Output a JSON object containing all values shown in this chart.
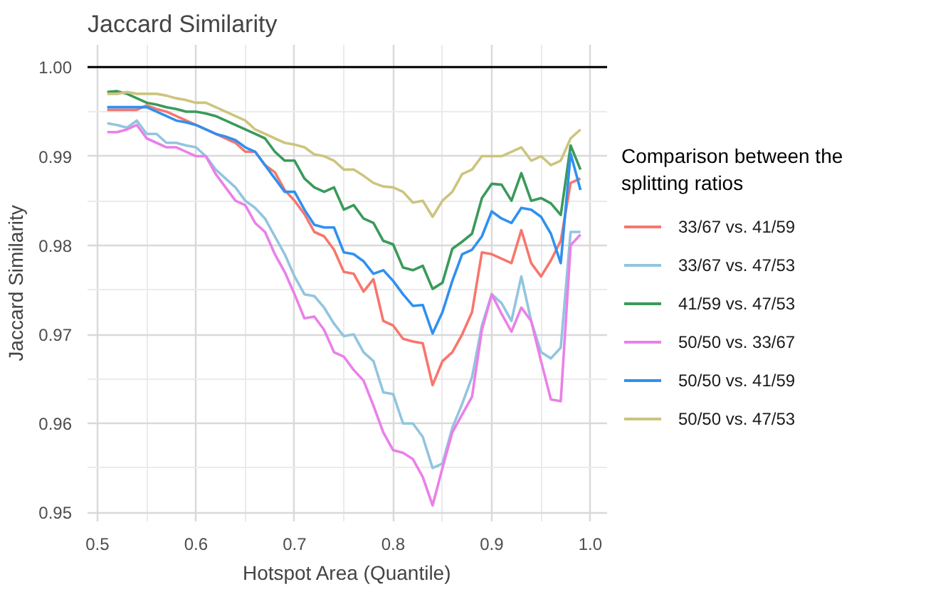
{
  "chart_data": {
    "type": "line",
    "title": "Jaccard Similarity",
    "xlabel": "Hotspot Area (Quantile)",
    "ylabel": "Jaccard Similarity",
    "legend_title": "Comparison between the splitting ratios",
    "x": [
      0.51,
      0.52,
      0.53,
      0.54,
      0.55,
      0.56,
      0.57,
      0.58,
      0.59,
      0.6,
      0.61,
      0.62,
      0.63,
      0.64,
      0.65,
      0.66,
      0.67,
      0.68,
      0.69,
      0.7,
      0.71,
      0.72,
      0.73,
      0.74,
      0.75,
      0.76,
      0.77,
      0.78,
      0.79,
      0.8,
      0.81,
      0.82,
      0.83,
      0.84,
      0.85,
      0.86,
      0.87,
      0.88,
      0.89,
      0.9,
      0.91,
      0.92,
      0.93,
      0.94,
      0.95,
      0.96,
      0.97,
      0.98,
      0.99
    ],
    "series": [
      {
        "name": "33/67 vs. 41/59",
        "color": "#f8766d",
        "values": [
          0.9952,
          0.9952,
          0.9952,
          0.9952,
          0.9957,
          0.9953,
          0.995,
          0.9945,
          0.994,
          0.9935,
          0.993,
          0.9925,
          0.992,
          0.9915,
          0.9905,
          0.9905,
          0.989,
          0.9882,
          0.9862,
          0.985,
          0.9835,
          0.9815,
          0.981,
          0.9795,
          0.977,
          0.9768,
          0.9748,
          0.9762,
          0.9715,
          0.971,
          0.9695,
          0.9692,
          0.969,
          0.9643,
          0.967,
          0.968,
          0.97,
          0.9725,
          0.9792,
          0.979,
          0.9785,
          0.978,
          0.9817,
          0.978,
          0.9765,
          0.9783,
          0.9805,
          0.987,
          0.9875
        ]
      },
      {
        "name": "33/67 vs. 47/53",
        "color": "#92c5de",
        "values": [
          0.9937,
          0.9935,
          0.9932,
          0.994,
          0.9925,
          0.9925,
          0.9915,
          0.9915,
          0.9912,
          0.991,
          0.99,
          0.9885,
          0.9875,
          0.9865,
          0.985,
          0.9842,
          0.983,
          0.981,
          0.979,
          0.9765,
          0.9745,
          0.9743,
          0.973,
          0.9712,
          0.9698,
          0.97,
          0.968,
          0.967,
          0.9635,
          0.9633,
          0.96,
          0.96,
          0.9585,
          0.955,
          0.9555,
          0.9595,
          0.9622,
          0.9652,
          0.971,
          0.9745,
          0.9735,
          0.9715,
          0.9765,
          0.9715,
          0.968,
          0.9673,
          0.9685,
          0.9815,
          0.9815
        ]
      },
      {
        "name": "41/59 vs. 47/53",
        "color": "#3a9a5a",
        "values": [
          0.9972,
          0.9973,
          0.997,
          0.9965,
          0.996,
          0.9958,
          0.9955,
          0.9953,
          0.995,
          0.995,
          0.9948,
          0.9945,
          0.994,
          0.9935,
          0.993,
          0.9925,
          0.992,
          0.9905,
          0.9895,
          0.9895,
          0.9875,
          0.9865,
          0.986,
          0.9865,
          0.984,
          0.9845,
          0.983,
          0.9825,
          0.9805,
          0.9801,
          0.9775,
          0.9772,
          0.9777,
          0.9751,
          0.9758,
          0.9796,
          0.9804,
          0.9813,
          0.9853,
          0.9869,
          0.9868,
          0.985,
          0.9881,
          0.985,
          0.9853,
          0.9847,
          0.9834,
          0.9912,
          0.9885
        ]
      },
      {
        "name": "50/50 vs. 33/67",
        "color": "#ea80e8",
        "values": [
          0.9927,
          0.9927,
          0.993,
          0.9935,
          0.992,
          0.9915,
          0.991,
          0.991,
          0.9905,
          0.99,
          0.99,
          0.988,
          0.9865,
          0.985,
          0.9845,
          0.9825,
          0.9815,
          0.979,
          0.977,
          0.9745,
          0.9718,
          0.972,
          0.9705,
          0.968,
          0.9675,
          0.966,
          0.9648,
          0.962,
          0.959,
          0.957,
          0.9567,
          0.956,
          0.954,
          0.9508,
          0.955,
          0.959,
          0.961,
          0.963,
          0.9705,
          0.9745,
          0.9723,
          0.9703,
          0.973,
          0.9715,
          0.967,
          0.9627,
          0.9625,
          0.98,
          0.9812
        ]
      },
      {
        "name": "50/50 vs. 41/59",
        "color": "#3090f0",
        "values": [
          0.9955,
          0.9955,
          0.9955,
          0.9955,
          0.9955,
          0.995,
          0.9945,
          0.994,
          0.9938,
          0.9935,
          0.993,
          0.9925,
          0.9922,
          0.9918,
          0.991,
          0.9905,
          0.989,
          0.9875,
          0.986,
          0.986,
          0.984,
          0.9823,
          0.982,
          0.982,
          0.9792,
          0.979,
          0.9782,
          0.9768,
          0.9772,
          0.976,
          0.9745,
          0.9732,
          0.9733,
          0.9701,
          0.9725,
          0.976,
          0.979,
          0.9795,
          0.981,
          0.9838,
          0.983,
          0.9825,
          0.9842,
          0.984,
          0.9832,
          0.9813,
          0.978,
          0.9903,
          0.9862
        ]
      },
      {
        "name": "50/50 vs. 47/53",
        "color": "#cdc47f",
        "values": [
          0.997,
          0.997,
          0.9972,
          0.997,
          0.997,
          0.997,
          0.9968,
          0.9965,
          0.9963,
          0.996,
          0.996,
          0.9955,
          0.995,
          0.9945,
          0.994,
          0.993,
          0.9925,
          0.992,
          0.9915,
          0.9913,
          0.991,
          0.9902,
          0.99,
          0.9895,
          0.9885,
          0.9885,
          0.9878,
          0.987,
          0.9866,
          0.9865,
          0.986,
          0.9848,
          0.985,
          0.9832,
          0.985,
          0.986,
          0.988,
          0.9885,
          0.99,
          0.99,
          0.99,
          0.9905,
          0.991,
          0.9895,
          0.99,
          0.989,
          0.9895,
          0.992,
          0.993
        ]
      }
    ],
    "xlim": [
      0.49,
      1.017
    ],
    "ylim": [
      0.949,
      1.0025
    ],
    "xticks": [
      0.5,
      0.6,
      0.7,
      0.8,
      0.9,
      {
        "value": 1.0,
        "label": "1.0"
      }
    ],
    "yticks": [
      0.95,
      0.96,
      0.97,
      0.98,
      0.99,
      {
        "value": 1.0,
        "label": "1.00"
      }
    ],
    "ref_lines": [
      {
        "axis": "y",
        "value": 1.0,
        "color": "#000000"
      }
    ],
    "grid": true,
    "legend": "right"
  }
}
